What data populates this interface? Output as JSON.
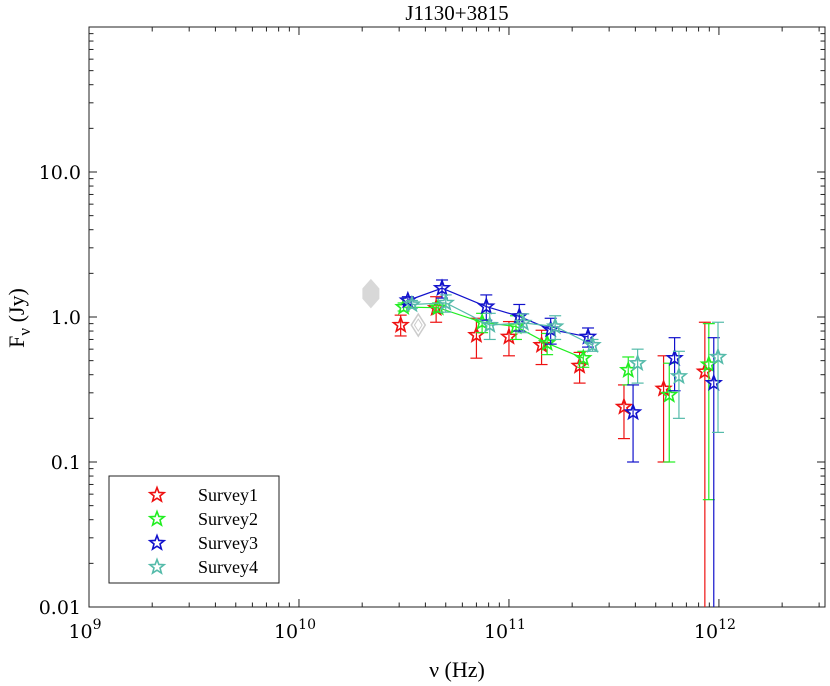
{
  "chart_data": {
    "type": "scatter",
    "title": "J1130+3815",
    "xlabel": "ν (Hz)",
    "ylabel_main": "F",
    "ylabel_sub": "ν",
    "ylabel_unit": " (Jy)",
    "xscale": "log",
    "yscale": "log",
    "xlim": [
      1000000000.0,
      3200000000000.0
    ],
    "ylim": [
      0.01,
      100
    ],
    "x_ticks": [
      {
        "value": 1000000000.0,
        "base": "10",
        "exp": "9"
      },
      {
        "value": 10000000000.0,
        "base": "10",
        "exp": "10"
      },
      {
        "value": 100000000000.0,
        "base": "10",
        "exp": "11"
      },
      {
        "value": 1000000000000.0,
        "base": "10",
        "exp": "12"
      }
    ],
    "y_ticks": [
      {
        "value": 0.01,
        "label": "0.01"
      },
      {
        "value": 0.1,
        "label": "0.1"
      },
      {
        "value": 1,
        "label": "1.0"
      },
      {
        "value": 10,
        "label": "10.0"
      }
    ],
    "legend_position": "bottom-left",
    "series": [
      {
        "name": "Survey1",
        "color": "#ee1111",
        "points": [
          {
            "x": 30500000000.0,
            "y": 0.88,
            "lo": 0.74,
            "hi": 1.03
          },
          {
            "x": 45000000000.0,
            "y": 1.15,
            "lo": 0.92,
            "hi": 1.38
          },
          {
            "x": 70000000000.0,
            "y": 0.75,
            "lo": 0.52,
            "hi": 0.98
          },
          {
            "x": 100000000000.0,
            "y": 0.73,
            "lo": 0.54,
            "hi": 0.93
          },
          {
            "x": 143000000000.0,
            "y": 0.64,
            "lo": 0.47,
            "hi": 0.81
          },
          {
            "x": 217000000000.0,
            "y": 0.46,
            "lo": 0.35,
            "hi": 0.57
          },
          {
            "x": 353000000000.0,
            "y": 0.24,
            "lo": 0.145,
            "hi": 0.34
          },
          {
            "x": 545000000000.0,
            "y": 0.32,
            "lo": 0.1,
            "hi": 0.54
          },
          {
            "x": 857000000000.0,
            "y": 0.42,
            "lo": 0.0001,
            "hi": 0.92
          }
        ],
        "line": false
      },
      {
        "name": "Survey2",
        "color": "#22ee22",
        "points": [
          {
            "x": 31500000000.0,
            "y": 1.17,
            "lo": 1.1,
            "hi": 1.25
          },
          {
            "x": 46000000000.0,
            "y": 1.16,
            "lo": 1.08,
            "hi": 1.25
          },
          {
            "x": 74500000000.0,
            "y": 0.92,
            "lo": 0.78,
            "hi": 1.06
          },
          {
            "x": 108000000000.0,
            "y": 0.86,
            "lo": 0.7,
            "hi": 1.02
          },
          {
            "x": 152000000000.0,
            "y": 0.66,
            "lo": 0.55,
            "hi": 0.77
          },
          {
            "x": 226000000000.0,
            "y": 0.52,
            "lo": 0.45,
            "hi": 0.58
          },
          {
            "x": 370000000000.0,
            "y": 0.43,
            "lo": 0.34,
            "hi": 0.53
          },
          {
            "x": 580000000000.0,
            "y": 0.29,
            "lo": 0.1,
            "hi": 0.48
          },
          {
            "x": 895000000000.0,
            "y": 0.47,
            "lo": 0.055,
            "hi": 0.9
          }
        ],
        "line": true
      },
      {
        "name": "Survey3",
        "color": "#1111cc",
        "points": [
          {
            "x": 33000000000.0,
            "y": 1.3,
            "lo": 1.22,
            "hi": 1.38
          },
          {
            "x": 48000000000.0,
            "y": 1.58,
            "lo": 1.35,
            "hi": 1.8
          },
          {
            "x": 78000000000.0,
            "y": 1.18,
            "lo": 0.95,
            "hi": 1.42
          },
          {
            "x": 112000000000.0,
            "y": 1.01,
            "lo": 0.8,
            "hi": 1.22
          },
          {
            "x": 158000000000.0,
            "y": 0.82,
            "lo": 0.65,
            "hi": 0.98
          },
          {
            "x": 238000000000.0,
            "y": 0.73,
            "lo": 0.62,
            "hi": 0.84
          },
          {
            "x": 390000000000.0,
            "y": 0.22,
            "lo": 0.1,
            "hi": 0.34
          },
          {
            "x": 615000000000.0,
            "y": 0.52,
            "lo": 0.31,
            "hi": 0.72
          },
          {
            "x": 945000000000.0,
            "y": 0.35,
            "lo": 0.0001,
            "hi": 0.72
          }
        ],
        "line": true
      },
      {
        "name": "Survey4",
        "color": "#55bbaa",
        "points": [
          {
            "x": 34500000000.0,
            "y": 1.22,
            "lo": 1.15,
            "hi": 1.3
          },
          {
            "x": 50000000000.0,
            "y": 1.25,
            "lo": 1.08,
            "hi": 1.42
          },
          {
            "x": 81000000000.0,
            "y": 0.88,
            "lo": 0.7,
            "hi": 1.06
          },
          {
            "x": 117000000000.0,
            "y": 0.91,
            "lo": 0.78,
            "hi": 1.05
          },
          {
            "x": 166000000000.0,
            "y": 0.86,
            "lo": 0.7,
            "hi": 1.02
          },
          {
            "x": 250000000000.0,
            "y": 0.64,
            "lo": 0.58,
            "hi": 0.7
          },
          {
            "x": 410000000000.0,
            "y": 0.48,
            "lo": 0.35,
            "hi": 0.6
          },
          {
            "x": 645000000000.0,
            "y": 0.39,
            "lo": 0.2,
            "hi": 0.58
          },
          {
            "x": 990000000000.0,
            "y": 0.53,
            "lo": 0.16,
            "hi": 0.92
          }
        ],
        "line": true
      }
    ],
    "extra_markers": [
      {
        "name": "gray-diamond-filled",
        "x": 22000000000.0,
        "y": 1.45,
        "color": "#d8d8d8",
        "filled": true
      },
      {
        "name": "gray-diamond-open",
        "x": 37000000000.0,
        "y": 0.88,
        "color": "#cccccc",
        "filled": false
      }
    ]
  }
}
